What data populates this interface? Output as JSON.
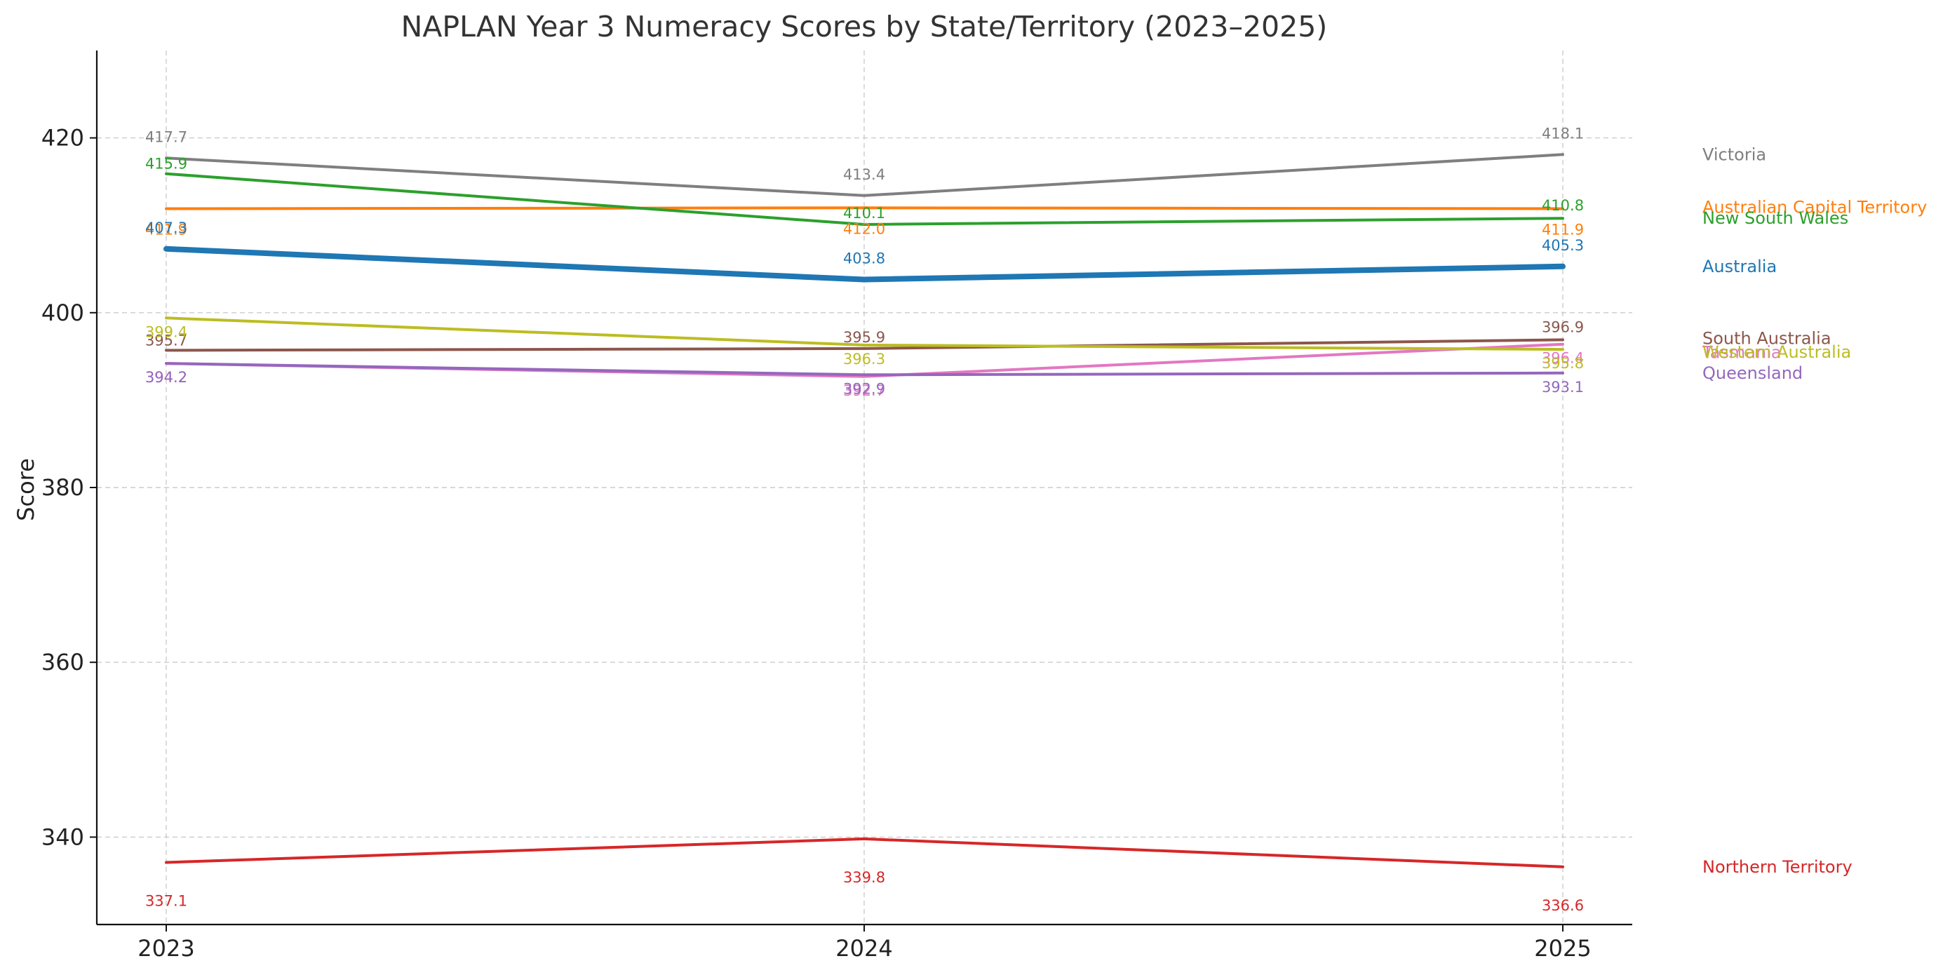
{
  "chart_data": {
    "type": "line",
    "title": "NAPLAN Year 3 Numeracy Scores by State/Territory (2023–2025)",
    "xlabel": "",
    "ylabel": "Score",
    "x": [
      "2023",
      "2024",
      "2025"
    ],
    "ylim": [
      330,
      430
    ],
    "yticks": [
      340,
      360,
      380,
      400,
      420
    ],
    "grid": true,
    "legend": "direct labels at right end of lines",
    "series": [
      {
        "name": "Victoria",
        "values": [
          417.7,
          413.4,
          418.1
        ],
        "color": "#7f7f7f"
      },
      {
        "name": "Australian Capital Territory",
        "values": [
          411.9,
          412.0,
          411.9
        ],
        "color": "#ff7f0e"
      },
      {
        "name": "New South Wales",
        "values": [
          415.9,
          410.1,
          410.8
        ],
        "color": "#2ca02c"
      },
      {
        "name": "Australia",
        "values": [
          407.3,
          403.8,
          405.3
        ],
        "color": "#1f77b4",
        "emphasis": true
      },
      {
        "name": "South Australia",
        "values": [
          395.7,
          395.9,
          396.9
        ],
        "color": "#8c564b"
      },
      {
        "name": "Tasmania",
        "values": [
          394.2,
          392.7,
          396.4
        ],
        "color": "#e377c2"
      },
      {
        "name": "Western Australia",
        "values": [
          399.4,
          396.3,
          395.8
        ],
        "color": "#bcbd22"
      },
      {
        "name": "Queensland",
        "values": [
          394.2,
          392.9,
          393.1
        ],
        "color": "#9467bd"
      },
      {
        "name": "Northern Territory",
        "values": [
          337.1,
          339.8,
          336.6
        ],
        "color": "#d62728"
      }
    ]
  }
}
